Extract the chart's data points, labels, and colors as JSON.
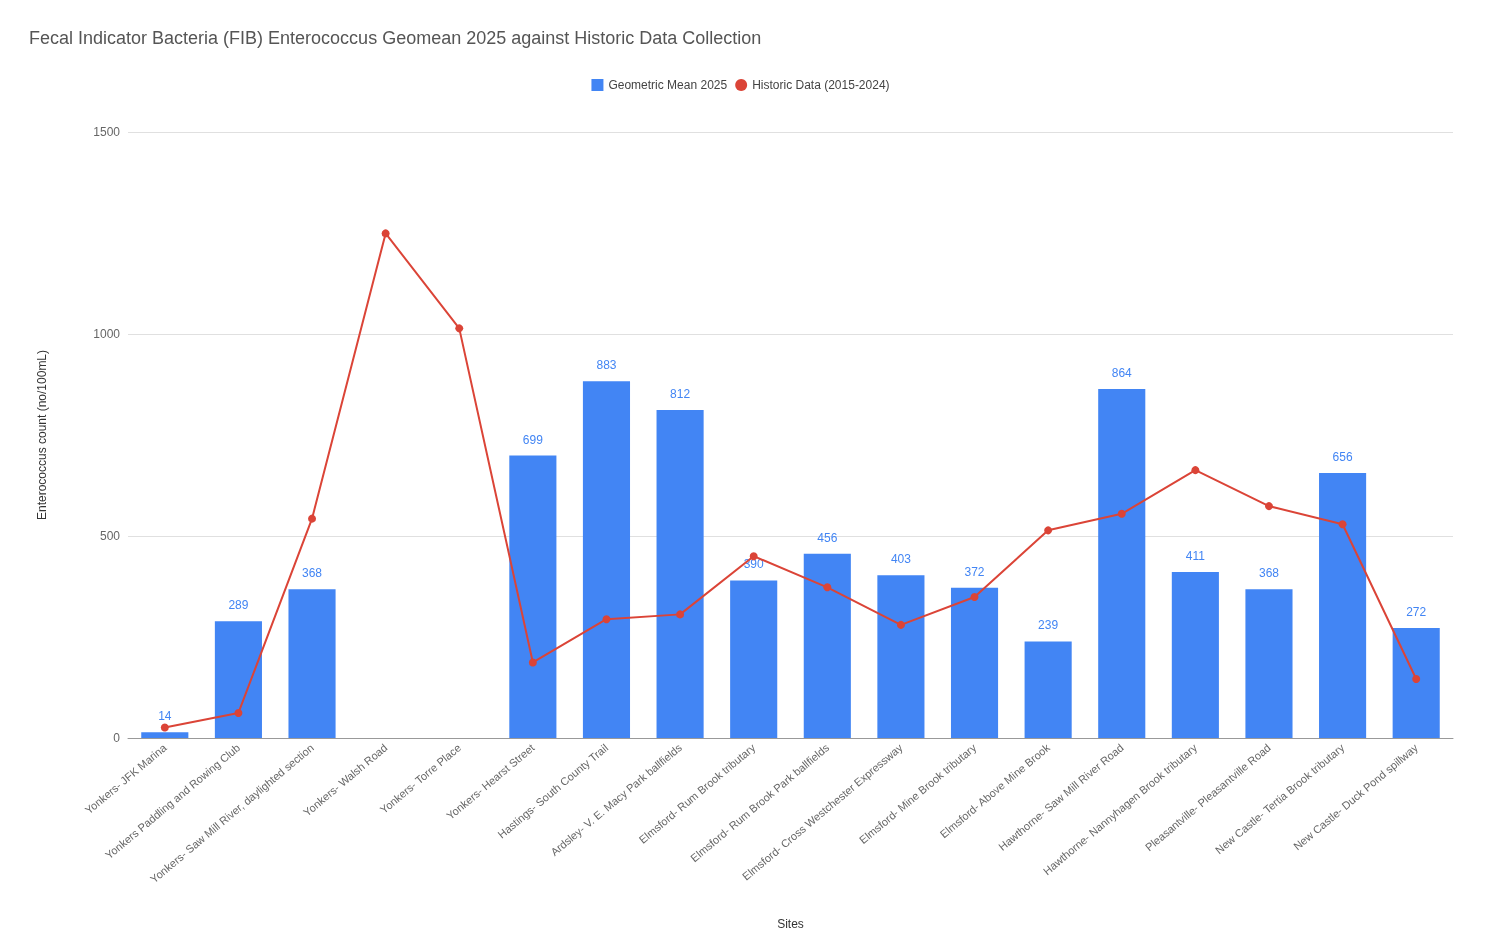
{
  "chart_data": {
    "type": "bar",
    "title": "Fecal Indicator Bacteria (FIB) Enterococcus Geomean 2025 against Historic Data Collection",
    "xlabel": "Sites",
    "ylabel": "Enterococcus count (no/100mL)",
    "categories": [
      "Yonkers- JFK Marina",
      "Yonkers Paddling and Rowing Club",
      "Yonkers- Saw Mill River, daylighted section",
      "Yonkers- Walsh Road",
      "Yonkers- Torre Place",
      "Yonkers- Hearst Street",
      "Hastings- South County Trail",
      "Ardsley- V. E. Macy Park ballfields",
      "Elmsford- Rum Brook tributary",
      "Elmsford- Rum Brook Park ballfields",
      "Elmsford- Cross Westchester Expressway",
      "Elmsford- Mine Brook tributary",
      "Elmsford- Above Mine Brook",
      "Hawthorne- Saw Mill River Road",
      "Hawthorne- Nannyhagen Brook tributary",
      "Pleasantville- Pleasantville Road",
      "New Castle- Tertia Brook tributary",
      "New Castle- Duck Pond spillway"
    ],
    "series": [
      {
        "name": "Geometric Mean 2025",
        "color": "#4285f4",
        "values": [
          14,
          289,
          368,
          null,
          null,
          699,
          883,
          812,
          390,
          456,
          403,
          372,
          239,
          864,
          411,
          368,
          656,
          272
        ],
        "value_labels": [
          "14",
          "289",
          "368",
          null,
          null,
          "699",
          "883",
          "812",
          "390",
          "456",
          "403",
          "372",
          "239",
          "864",
          "411",
          "368",
          "656",
          "272"
        ]
      },
      {
        "name": "Historic Data (2015-2024)",
        "type": "line",
        "color": "#db4437",
        "marker": "circle",
        "line_style": "solid",
        "values": [
          26,
          62,
          543,
          1249,
          1014,
          187,
          294,
          306,
          450,
          373,
          280,
          349,
          514,
          555,
          663,
          574,
          529,
          146
        ]
      }
    ],
    "ylim": [
      0,
      1500
    ],
    "yticks": [
      0,
      500,
      1000,
      1500
    ],
    "grid": "y",
    "legend": "top"
  }
}
